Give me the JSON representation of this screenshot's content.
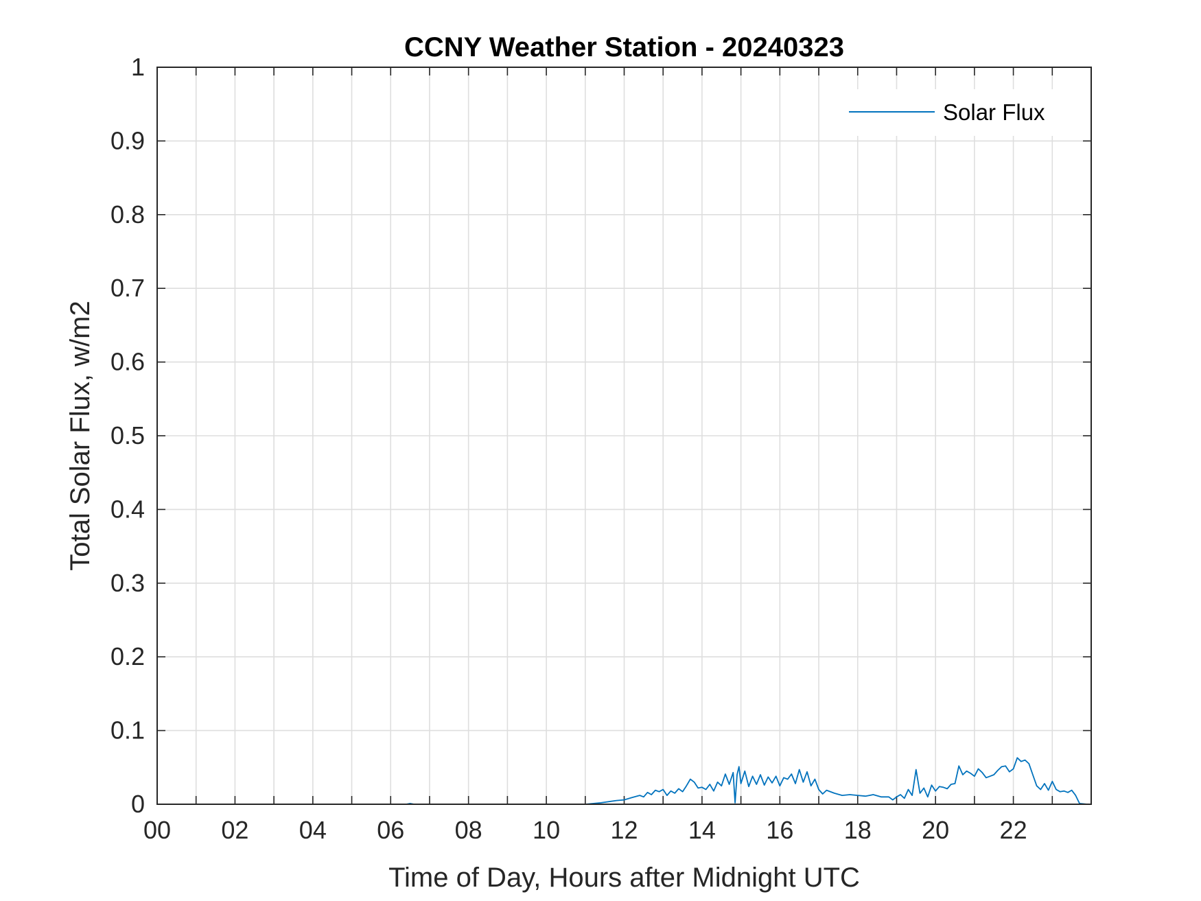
{
  "chart_data": {
    "type": "line",
    "title": "CCNY Weather Station - 20240323",
    "xlabel": "Time of Day, Hours after Midnight UTC",
    "ylabel": "Total Solar Flux, w/m2",
    "xlim": [
      0,
      24
    ],
    "ylim": [
      0,
      1
    ],
    "x_ticks": [
      0,
      2,
      4,
      6,
      8,
      10,
      12,
      14,
      16,
      18,
      20,
      22
    ],
    "x_tick_labels": [
      "00",
      "02",
      "04",
      "06",
      "08",
      "10",
      "12",
      "14",
      "16",
      "18",
      "20",
      "22"
    ],
    "x_minor_grid_step": 1,
    "y_ticks": [
      0,
      0.1,
      0.2,
      0.3,
      0.4,
      0.5,
      0.6,
      0.7,
      0.8,
      0.9,
      1
    ],
    "y_tick_labels": [
      "0",
      "0.1",
      "0.2",
      "0.3",
      "0.4",
      "0.5",
      "0.6",
      "0.7",
      "0.8",
      "0.9",
      "1"
    ],
    "grid": true,
    "legend_position": "top-right",
    "series": [
      {
        "name": "Solar Flux",
        "color": "#0072BD",
        "x": [
          0,
          6.4,
          6.5,
          6.6,
          11.0,
          11.4,
          11.8,
          12.0,
          12.2,
          12.4,
          12.5,
          12.6,
          12.7,
          12.8,
          12.9,
          13.0,
          13.1,
          13.2,
          13.3,
          13.4,
          13.5,
          13.6,
          13.7,
          13.8,
          13.9,
          14.0,
          14.1,
          14.2,
          14.3,
          14.4,
          14.5,
          14.6,
          14.7,
          14.8,
          14.85,
          14.9,
          14.95,
          15.0,
          15.1,
          15.2,
          15.3,
          15.4,
          15.5,
          15.6,
          15.7,
          15.8,
          15.9,
          16.0,
          16.1,
          16.2,
          16.3,
          16.4,
          16.5,
          16.6,
          16.7,
          16.8,
          16.9,
          17.0,
          17.1,
          17.2,
          17.4,
          17.6,
          17.8,
          18.0,
          18.2,
          18.4,
          18.6,
          18.8,
          18.9,
          19.0,
          19.1,
          19.2,
          19.3,
          19.4,
          19.5,
          19.6,
          19.7,
          19.8,
          19.9,
          20.0,
          20.1,
          20.2,
          20.3,
          20.4,
          20.5,
          20.6,
          20.7,
          20.8,
          20.9,
          21.0,
          21.1,
          21.2,
          21.3,
          21.4,
          21.5,
          21.6,
          21.7,
          21.8,
          21.9,
          22.0,
          22.1,
          22.2,
          22.3,
          22.4,
          22.5,
          22.6,
          22.7,
          22.8,
          22.9,
          23.0,
          23.1,
          23.2,
          23.3,
          23.4,
          23.5,
          23.6,
          23.7,
          23.9
        ],
        "y": [
          0,
          0,
          0.001,
          0,
          0,
          0.002,
          0.005,
          0.006,
          0.009,
          0.012,
          0.01,
          0.016,
          0.013,
          0.019,
          0.017,
          0.02,
          0.012,
          0.018,
          0.015,
          0.021,
          0.017,
          0.025,
          0.034,
          0.03,
          0.022,
          0.023,
          0.02,
          0.027,
          0.018,
          0.03,
          0.025,
          0.041,
          0.027,
          0.043,
          0.002,
          0.04,
          0.051,
          0.028,
          0.045,
          0.024,
          0.038,
          0.027,
          0.04,
          0.026,
          0.037,
          0.029,
          0.038,
          0.025,
          0.036,
          0.034,
          0.041,
          0.028,
          0.047,
          0.03,
          0.044,
          0.025,
          0.034,
          0.02,
          0.014,
          0.019,
          0.015,
          0.012,
          0.013,
          0.012,
          0.011,
          0.013,
          0.01,
          0.01,
          0.006,
          0.01,
          0.013,
          0.008,
          0.02,
          0.012,
          0.047,
          0.015,
          0.022,
          0.01,
          0.026,
          0.018,
          0.024,
          0.023,
          0.021,
          0.027,
          0.028,
          0.052,
          0.04,
          0.045,
          0.042,
          0.038,
          0.048,
          0.043,
          0.036,
          0.038,
          0.04,
          0.046,
          0.051,
          0.052,
          0.044,
          0.048,
          0.063,
          0.058,
          0.06,
          0.055,
          0.04,
          0.025,
          0.02,
          0.028,
          0.019,
          0.031,
          0.02,
          0.017,
          0.018,
          0.016,
          0.019,
          0.012,
          0.001,
          0
        ]
      }
    ]
  }
}
